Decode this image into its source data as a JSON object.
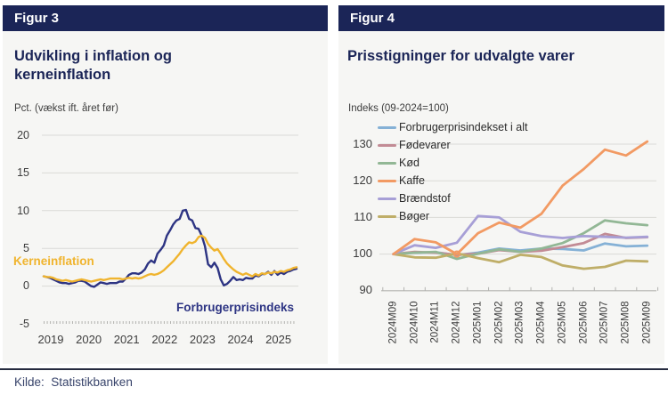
{
  "page": {
    "source_label": "Kilde:  Statistikbanken"
  },
  "figur3": {
    "header": "Figur 3",
    "title_line1": "Udvikling i inflation og",
    "title_line2": "kerneinflation",
    "axis_unit": "Pct. (vækst ift. året før)"
  },
  "figur4": {
    "header": "Figur 4",
    "title": "Prisstigninger for udvalgte varer",
    "axis_unit": "Indeks (09-2024=100)"
  },
  "chart_data": [
    {
      "type": "line",
      "title": "Udvikling i inflation og kerneinflation",
      "ylabel": "Pct. (vækst ift. året før)",
      "ylim": [
        -5,
        20
      ],
      "yticks": [
        20,
        15,
        10,
        5,
        0,
        -5
      ],
      "grid": true,
      "x_monthly_from": "2019-01",
      "x_monthly_to": "2025-09",
      "xticklabels": [
        "2019",
        "2020",
        "2021",
        "2022",
        "2023",
        "2024",
        "2025"
      ],
      "series": [
        {
          "name": "Kerneinflation",
          "color": "#f0b42e",
          "values": [
            1.3,
            1.2,
            1.2,
            1.1,
            0.9,
            0.8,
            0.7,
            0.8,
            0.7,
            0.6,
            0.7,
            0.8,
            0.9,
            0.8,
            0.7,
            0.6,
            0.7,
            0.8,
            0.9,
            0.8,
            0.9,
            1.0,
            1.0,
            1.0,
            1.0,
            0.9,
            1.0,
            1.1,
            1.0,
            1.1,
            1.0,
            1.1,
            1.3,
            1.5,
            1.6,
            1.5,
            1.6,
            1.8,
            2.1,
            2.5,
            2.9,
            3.3,
            3.8,
            4.3,
            4.9,
            5.4,
            5.8,
            5.7,
            5.9,
            6.5,
            6.7,
            6.4,
            5.6,
            5.1,
            4.7,
            4.9,
            4.3,
            3.6,
            3.0,
            2.6,
            2.2,
            1.9,
            1.7,
            1.5,
            1.7,
            1.5,
            1.3,
            1.6,
            1.4,
            1.7,
            1.6,
            1.8,
            1.7,
            1.9,
            1.8,
            2.0,
            1.9,
            2.1,
            2.2,
            2.4,
            2.5
          ]
        },
        {
          "name": "Forbrugerprisindeks",
          "color": "#2d3483",
          "values": [
            1.3,
            1.2,
            1.1,
            0.9,
            0.7,
            0.5,
            0.4,
            0.4,
            0.3,
            0.4,
            0.5,
            0.7,
            0.7,
            0.6,
            0.3,
            0.0,
            -0.1,
            0.2,
            0.5,
            0.4,
            0.3,
            0.4,
            0.4,
            0.4,
            0.6,
            0.6,
            1.0,
            1.5,
            1.7,
            1.7,
            1.6,
            1.8,
            2.2,
            3.0,
            3.4,
            3.1,
            4.3,
            4.8,
            5.4,
            6.7,
            7.4,
            8.2,
            8.7,
            8.9,
            10.0,
            10.1,
            8.9,
            8.7,
            7.7,
            7.6,
            6.7,
            5.3,
            2.9,
            2.5,
            3.1,
            2.4,
            0.9,
            0.1,
            0.3,
            0.7,
            1.2,
            0.8,
            0.9,
            0.8,
            1.1,
            1.0,
            1.0,
            1.4,
            1.3,
            1.6,
            1.6,
            1.9,
            1.5,
            2.0,
            1.5,
            1.8,
            1.6,
            1.9,
            2.0,
            2.2,
            2.3
          ]
        }
      ]
    },
    {
      "type": "line",
      "title": "Prisstigninger for udvalgte varer",
      "ylabel": "Indeks (09-2024=100)",
      "ylim": [
        90,
        133
      ],
      "yticks": [
        130,
        120,
        110,
        100,
        90
      ],
      "grid": true,
      "legend_position": "top-left-overlay",
      "categories": [
        "2024M09",
        "2024M10",
        "2024M11",
        "2024M12",
        "2025M01",
        "2025M02",
        "2025M03",
        "2025M04",
        "2025M05",
        "2025M06",
        "2025M07",
        "2025M08",
        "2025M09"
      ],
      "series": [
        {
          "name": "Forbrugerprisindekset i alt",
          "color": "#85b1d6",
          "values": [
            100,
            100.4,
            100.5,
            99.7,
            100.4,
            101.5,
            101.0,
            101.5,
            101.4,
            101.0,
            102.9,
            102.1,
            102.3
          ]
        },
        {
          "name": "Fødevarer",
          "color": "#c28b95",
          "values": [
            100,
            100.6,
            100.4,
            99.8,
            100.1,
            101.1,
            100.6,
            100.9,
            101.9,
            103.0,
            105.5,
            104.4,
            104.6
          ]
        },
        {
          "name": "Kød",
          "color": "#92b795",
          "values": [
            100,
            100.4,
            100.6,
            98.7,
            100.1,
            101.3,
            100.6,
            101.5,
            103.0,
            105.7,
            109.2,
            108.4,
            107.9
          ]
        },
        {
          "name": "Kaffe",
          "color": "#f29a63",
          "values": [
            100,
            104.1,
            103.2,
            100.0,
            105.7,
            108.6,
            107.2,
            111.0,
            118.7,
            123.2,
            128.5,
            126.9,
            130.7
          ]
        },
        {
          "name": "Brændstof",
          "color": "#a79fd6",
          "values": [
            100,
            102.4,
            101.7,
            103.1,
            110.4,
            110.0,
            106.1,
            104.9,
            104.4,
            104.9,
            104.7,
            104.5,
            104.7
          ]
        },
        {
          "name": "Bøger",
          "color": "#bfae68",
          "values": [
            100,
            99.1,
            99.0,
            100.2,
            98.9,
            97.8,
            99.8,
            99.2,
            96.9,
            96.0,
            96.5,
            98.2,
            98.0
          ]
        }
      ],
      "marker": {
        "series_name": "Kaffe",
        "category": "2024M12",
        "value": 100
      }
    }
  ]
}
